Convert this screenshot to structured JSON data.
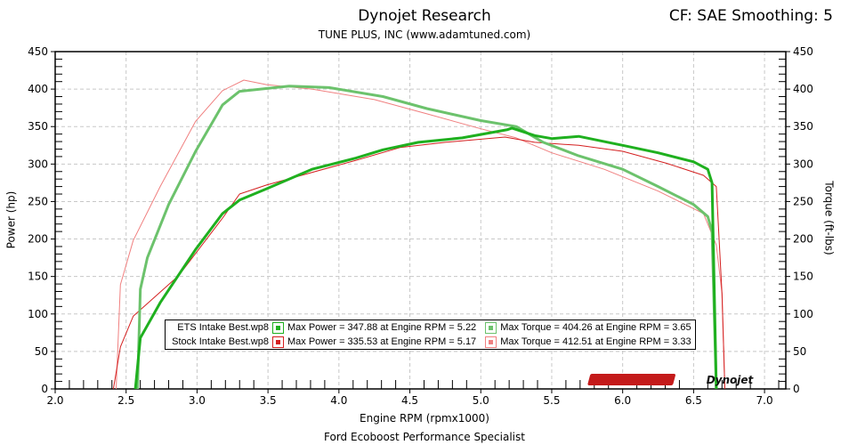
{
  "header": {
    "title": "Dynojet Research",
    "subtitle": "TUNE PLUS, INC (www.adamtuned.com)",
    "cf": "CF: SAE Smoothing: 5"
  },
  "footer": "Ford Ecoboost Performance Specialist",
  "logo": "Dynojet",
  "chart_data": {
    "type": "line",
    "title": "Dynojet Research",
    "xlabel": "Engine RPM (rpmx1000)",
    "ylabel": "Power (hp)",
    "y2label": "Torque (ft-lbs)",
    "xlim": [
      2.0,
      7.15
    ],
    "ylim": [
      0,
      450
    ],
    "y2lim": [
      0,
      450
    ],
    "xticks": [
      "2.0",
      "2.5",
      "3.0",
      "3.5",
      "4.0",
      "4.5",
      "5.0",
      "5.5",
      "6.0",
      "6.5",
      "7.0"
    ],
    "yticks": [
      "0",
      "50",
      "100",
      "150",
      "200",
      "250",
      "300",
      "350",
      "400",
      "450"
    ],
    "grid": true,
    "legend_position": "bottom-center",
    "series": [
      {
        "name": "ETS Intake Best.wp8 Power",
        "color": "#1fb01f",
        "width": 3,
        "x": [
          2.565,
          2.6,
          2.74,
          2.99,
          3.18,
          3.3,
          3.49,
          3.81,
          4.12,
          4.31,
          4.56,
          4.87,
          5.19,
          5.22,
          5.38,
          5.5,
          5.69,
          6.0,
          6.25,
          6.5,
          6.6,
          6.63,
          6.66
        ],
        "y": [
          0,
          68,
          115,
          186,
          234,
          252,
          267,
          293,
          308,
          319,
          329,
          335,
          346,
          348,
          338,
          334,
          337,
          325,
          315,
          303,
          293,
          275,
          0
        ]
      },
      {
        "name": "ETS Intake Best.wp8 Torque",
        "color": "#6cc26c",
        "width": 3,
        "x": [
          2.58,
          2.6,
          2.65,
          2.8,
          2.99,
          3.18,
          3.3,
          3.65,
          3.93,
          4.31,
          4.62,
          5.0,
          5.25,
          5.44,
          5.69,
          6.0,
          6.25,
          6.5,
          6.6,
          6.63,
          6.66
        ],
        "y": [
          0,
          133,
          175,
          246,
          317,
          379,
          397,
          404,
          402,
          390,
          374,
          358,
          350,
          329,
          311,
          293,
          270,
          246,
          230,
          210,
          0
        ]
      },
      {
        "name": "Stock Intake Best.wp8 Power",
        "color": "#d42020",
        "width": 1,
        "x": [
          2.41,
          2.46,
          2.55,
          2.87,
          3.18,
          3.3,
          3.49,
          4.12,
          4.43,
          4.75,
          5.17,
          5.38,
          5.69,
          6.0,
          6.31,
          6.57,
          6.66,
          6.7,
          6.72
        ],
        "y": [
          0,
          56,
          97,
          151,
          228,
          260,
          272,
          305,
          322,
          329,
          336,
          329,
          325,
          317,
          301,
          285,
          270,
          127,
          0
        ]
      },
      {
        "name": "Stock Intake Best.wp8 Torque",
        "color": "#f08080",
        "width": 1,
        "x": [
          2.43,
          2.46,
          2.55,
          2.74,
          2.99,
          3.18,
          3.33,
          3.49,
          3.81,
          4.25,
          4.62,
          5.0,
          5.25,
          5.5,
          5.87,
          6.25,
          6.57,
          6.66,
          6.7,
          6.72
        ],
        "y": [
          0,
          139,
          198,
          270,
          357,
          398,
          412,
          406,
          400,
          386,
          367,
          347,
          335,
          315,
          293,
          264,
          234,
          192,
          127,
          0
        ]
      }
    ],
    "legend": [
      {
        "file": "ETS Intake Best.wp8",
        "power_color": "#1fb01f",
        "torque_color": "#6cc26c",
        "power": "Max Power = 347.88 at Engine RPM = 5.22",
        "torque": "Max Torque = 404.26 at Engine RPM = 3.65"
      },
      {
        "file": "Stock Intake Best.wp8",
        "power_color": "#d42020",
        "torque_color": "#f08080",
        "power": "Max Power = 335.53 at Engine RPM = 5.17",
        "torque": "Max Torque = 412.51 at Engine RPM = 3.33"
      }
    ]
  }
}
